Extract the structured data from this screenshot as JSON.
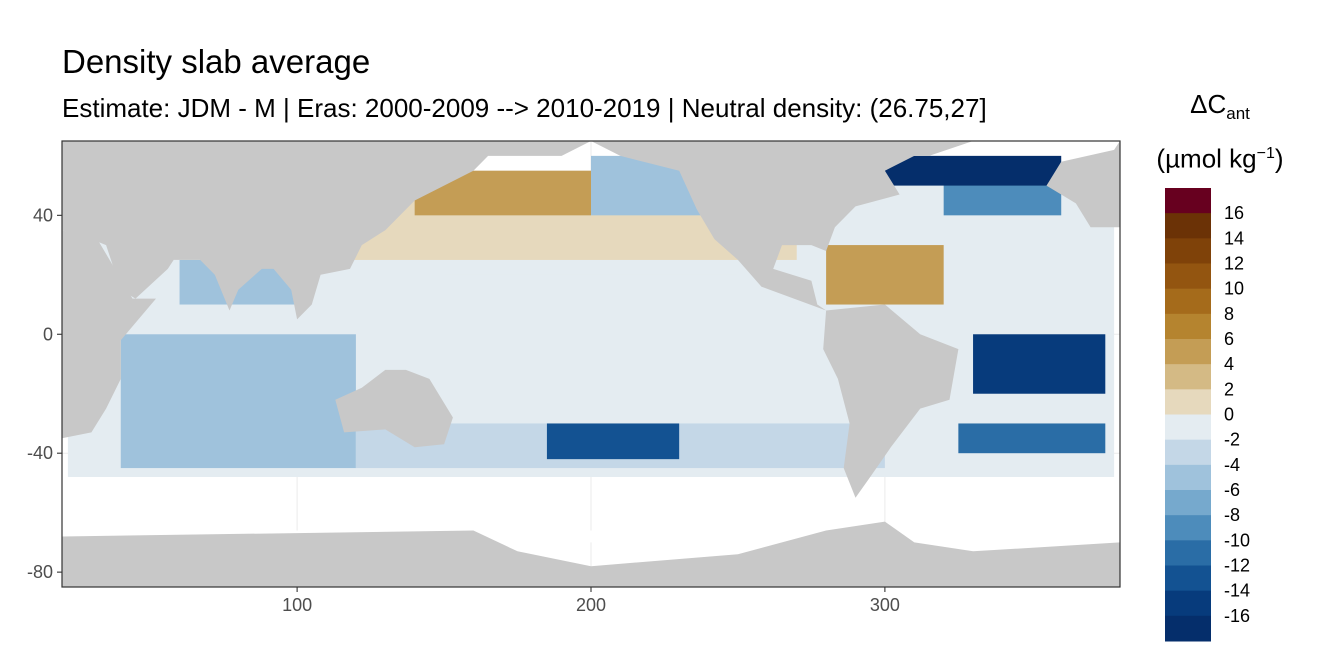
{
  "chart_data": {
    "type": "heatmap",
    "title": "Density slab average",
    "subtitle": "Estimate: JDM - M | Eras: 2000-2009 --> 2010-2019 | Neutral density: (26.75,27]",
    "xlim": [
      20,
      380
    ],
    "ylim": [
      -85,
      65
    ],
    "x_ticks": [
      100,
      200,
      300
    ],
    "y_ticks": [
      40,
      0,
      -40,
      -80
    ],
    "x_tick_labels": [
      "100",
      "200",
      "300"
    ],
    "y_tick_labels": [
      "40",
      "0",
      "-40",
      "-80"
    ],
    "grid": true,
    "legend": {
      "title_main": "ΔC",
      "title_sub": "ant",
      "unit_open": "(µmol kg",
      "unit_sup": "−1",
      "unit_close": ")",
      "placement": "right",
      "breaks": [
        18,
        16,
        14,
        12,
        10,
        8,
        6,
        4,
        2,
        0,
        -2,
        -4,
        -6,
        -8,
        -10,
        -12,
        -14,
        -16,
        -18
      ],
      "labels": [
        "16",
        "14",
        "12",
        "10",
        "8",
        "6",
        "4",
        "2",
        "0",
        "-2",
        "-4",
        "-6",
        "-8",
        "-10",
        "-12",
        "-14",
        "-16"
      ],
      "colors": [
        "#67001f",
        "#6b3206",
        "#7f4209",
        "#935510",
        "#a56b1b",
        "#b5842f",
        "#c49d55",
        "#d4ba85",
        "#e6d9bd",
        "#e4ecf1",
        "#c4d7e7",
        "#9fc2dc",
        "#76a9cd",
        "#4d8cbb",
        "#2a6da6",
        "#135292",
        "#073b7c",
        "#052e6b",
        "#031f5a"
      ]
    },
    "land_color": "#c8c8c8",
    "cells": [
      {
        "lon": [
          100,
          270
        ],
        "lat": [
          25,
          55
        ],
        "value": 1
      },
      {
        "lon": [
          150,
          250
        ],
        "lat": [
          -30,
          20
        ],
        "value": -1
      },
      {
        "lon": [
          40,
          120
        ],
        "lat": [
          -45,
          0
        ],
        "value": -5
      },
      {
        "lon": [
          120,
          300
        ],
        "lat": [
          -45,
          -30
        ],
        "value": -2
      },
      {
        "lon": [
          185,
          230
        ],
        "lat": [
          -42,
          -30
        ],
        "value": -12
      },
      {
        "lon": [
          140,
          200
        ],
        "lat": [
          40,
          55
        ],
        "value": 5
      },
      {
        "lon": [
          200,
          240
        ],
        "lat": [
          40,
          60
        ],
        "value": -5
      },
      {
        "lon": [
          280,
          320
        ],
        "lat": [
          10,
          30
        ],
        "value": 6
      },
      {
        "lon": [
          330,
          375
        ],
        "lat": [
          -20,
          0
        ],
        "value": -14
      },
      {
        "lon": [
          325,
          375
        ],
        "lat": [
          -40,
          -30
        ],
        "value": -10
      },
      {
        "lon": [
          320,
          360
        ],
        "lat": [
          40,
          55
        ],
        "value": -8
      },
      {
        "lon": [
          300,
          360
        ],
        "lat": [
          50,
          60
        ],
        "value": -16
      },
      {
        "lon": [
          60,
          100
        ],
        "lat": [
          10,
          25
        ],
        "value": -5
      }
    ]
  }
}
